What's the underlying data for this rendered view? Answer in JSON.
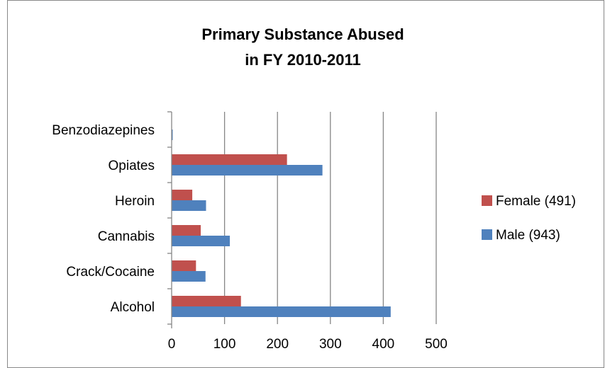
{
  "chart_data": {
    "type": "bar",
    "orientation": "horizontal",
    "title_lines": [
      "Primary Substance Abused",
      "in FY 2010-2011"
    ],
    "categories": [
      "Alcohol",
      "Crack/Cocaine",
      "Cannabis",
      "Heroin",
      "Opiates",
      "Benzodiazepines"
    ],
    "series": [
      {
        "name": "Female (491)",
        "color": "#c0504d",
        "values": [
          131,
          46,
          55,
          39,
          218,
          0
        ]
      },
      {
        "name": "Male (943)",
        "color": "#4f81bd",
        "values": [
          414,
          64,
          110,
          65,
          285,
          2
        ]
      }
    ],
    "xlim": [
      0,
      500
    ],
    "xticks": [
      "0",
      "100",
      "200",
      "300",
      "400",
      "500"
    ],
    "grid": "vertical",
    "legend_position": "right",
    "xlabel": "",
    "ylabel": ""
  }
}
